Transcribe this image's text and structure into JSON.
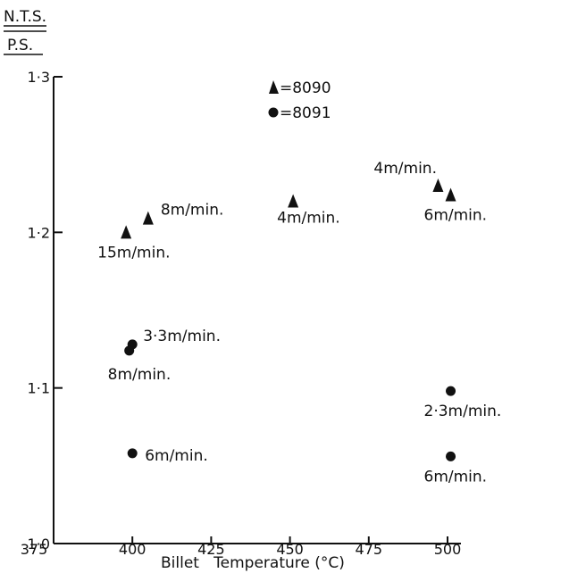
{
  "chart_data": {
    "type": "scatter",
    "title": "",
    "ylabel_num": "N.T.S.",
    "ylabel_den": "P.S.",
    "xlabel": "Billet   Temperature (°C)",
    "xlim": [
      375,
      500
    ],
    "ylim": [
      1.0,
      1.3
    ],
    "x_ticks": [
      "375",
      "400",
      "425",
      "450",
      "475",
      "500"
    ],
    "y_ticks": [
      "1·0",
      "1·1",
      "1·2",
      "1·3"
    ],
    "legend": {
      "placement": "top-center",
      "entries": [
        "=8090",
        "=8091"
      ]
    },
    "grid": false,
    "series": [
      {
        "name": "8090",
        "marker": "triangle",
        "points": [
          {
            "x": 398,
            "y": 1.2,
            "label": "15m/min."
          },
          {
            "x": 405,
            "y": 1.209,
            "label": "8m/min."
          },
          {
            "x": 451,
            "y": 1.22,
            "label": "4m/min."
          },
          {
            "x": 497,
            "y": 1.23,
            "label": "4m/min."
          },
          {
            "x": 501,
            "y": 1.224,
            "label": "6m/min."
          }
        ]
      },
      {
        "name": "8091",
        "marker": "circle",
        "points": [
          {
            "x": 400,
            "y": 1.128,
            "label": "3·3m/min."
          },
          {
            "x": 399,
            "y": 1.124,
            "label": "8m/min."
          },
          {
            "x": 400,
            "y": 1.058,
            "label": "6m/min."
          },
          {
            "x": 501,
            "y": 1.098,
            "label": "2·3m/min."
          },
          {
            "x": 501,
            "y": 1.056,
            "label": "6m/min."
          }
        ]
      }
    ]
  }
}
